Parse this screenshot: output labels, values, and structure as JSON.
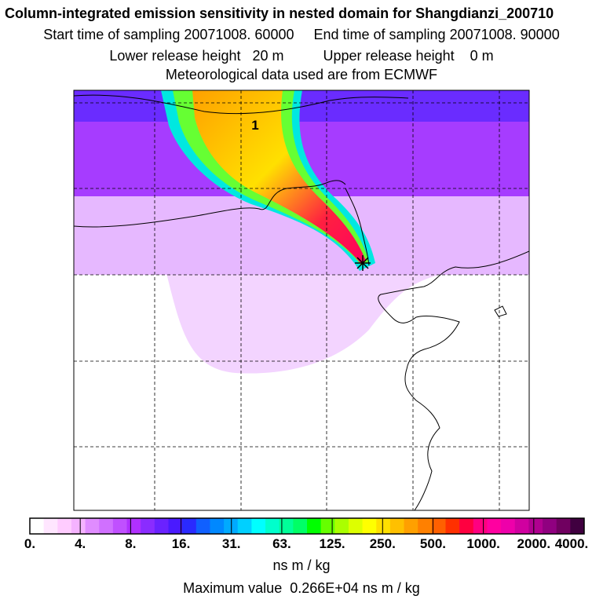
{
  "header": {
    "title": "Column-integrated emission sensitivity in nested domain for Shangdianzi_200710",
    "sampling_line": "Start time of sampling 20071008. 60000     End time of sampling 20071008. 90000",
    "release_line": "Lower release height   20 m          Upper release height    0 m",
    "met_line": "Meteorological data used are from ECMWF"
  },
  "map": {
    "marker_label": "1",
    "site_marker": "receptor-star"
  },
  "colorbar": {
    "ticks": [
      "0.",
      "4.",
      "8.",
      "16.",
      "31.",
      "63.",
      "125.",
      "250.",
      "500.",
      "1000.",
      "2000.",
      "4000."
    ],
    "colors": [
      "#ffffff",
      "#ffe6ff",
      "#ffccff",
      "#f5b3ff",
      "#e08cff",
      "#d070ff",
      "#c050ff",
      "#b030ff",
      "#8a2cff",
      "#6a22ff",
      "#4a1aff",
      "#2a2aff",
      "#1060ff",
      "#0088ff",
      "#00aaff",
      "#00d0ff",
      "#00ffff",
      "#00ffcc",
      "#00ff99",
      "#00ff66",
      "#00ff00",
      "#66ff00",
      "#aaff00",
      "#ddff00",
      "#ffff00",
      "#ffe000",
      "#ffc000",
      "#ffa000",
      "#ff8000",
      "#ff6000",
      "#ff3000",
      "#ff0040",
      "#ff0080",
      "#ff00a0",
      "#ee00aa",
      "#d000a0",
      "#b00090",
      "#900080",
      "#700060",
      "#400040"
    ],
    "units": "ns m / kg",
    "max_value_text": "Maximum value  0.266E+04 ns m / kg"
  }
}
